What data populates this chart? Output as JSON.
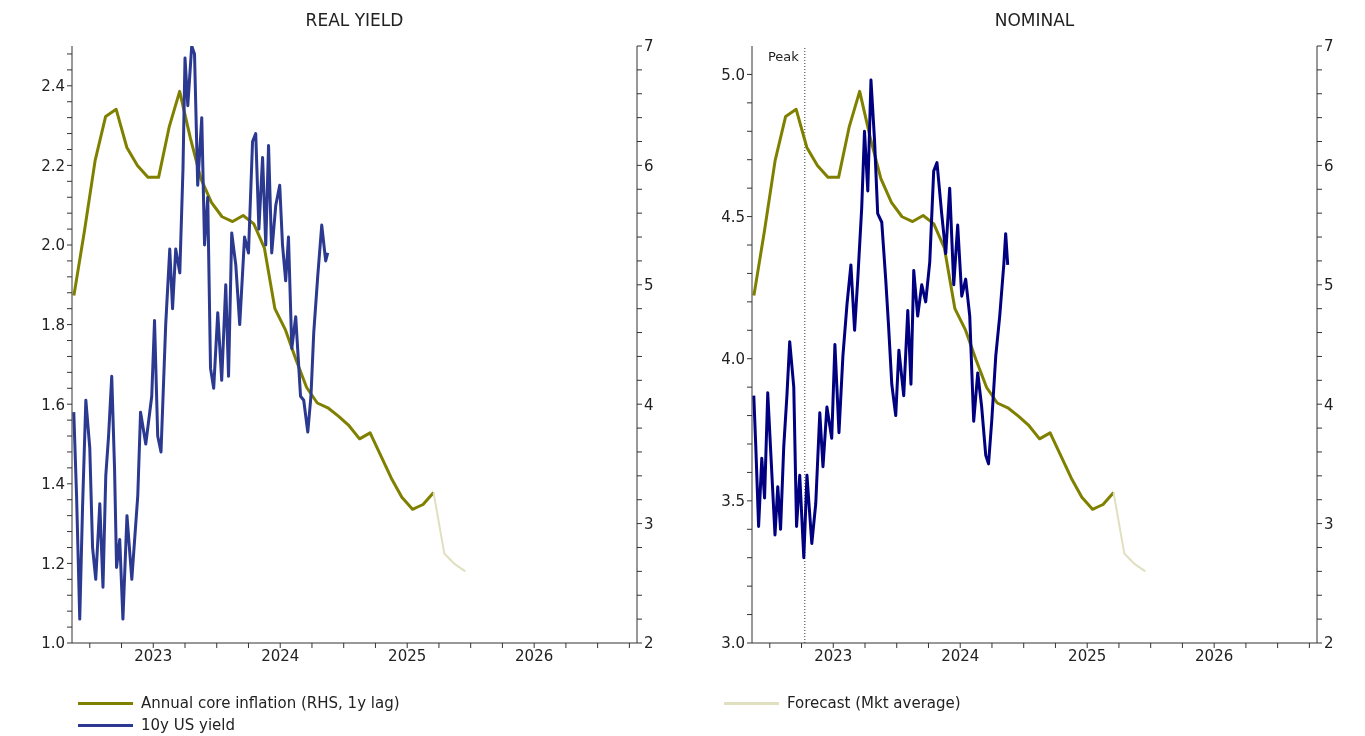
{
  "chart_data": [
    {
      "type": "line",
      "title": "REAL YIELD",
      "legend": "bottom",
      "xlim": [
        2022.86,
        2027.31
      ],
      "xticks": [
        {
          "value": 2023,
          "label": null
        },
        {
          "value": 2023.25,
          "label": null
        },
        {
          "value": 2023.5,
          "label": "2023"
        },
        {
          "value": 2023.75,
          "label": null
        },
        {
          "value": 2024,
          "label": null
        },
        {
          "value": 2024.25,
          "label": null
        },
        {
          "value": 2024.5,
          "label": "2024"
        },
        {
          "value": 2024.75,
          "label": null
        },
        {
          "value": 2025,
          "label": null
        },
        {
          "value": 2025.25,
          "label": null
        },
        {
          "value": 2025.5,
          "label": "2025"
        },
        {
          "value": 2025.75,
          "label": null
        },
        {
          "value": 2026,
          "label": null
        },
        {
          "value": 2026.25,
          "label": null
        },
        {
          "value": 2026.5,
          "label": "2026"
        },
        {
          "value": 2026.75,
          "label": null
        },
        {
          "value": 2027,
          "label": null
        },
        {
          "value": 2027.25,
          "label": null
        }
      ],
      "ylim": [
        1.0,
        2.5
      ],
      "yticks": [
        {
          "value": 1.0,
          "label": "1.0"
        },
        {
          "value": 1.04,
          "label": null
        },
        {
          "value": 1.08,
          "label": null
        },
        {
          "value": 1.12,
          "label": null
        },
        {
          "value": 1.16,
          "label": null
        },
        {
          "value": 1.2,
          "label": "1.2"
        },
        {
          "value": 1.24,
          "label": null
        },
        {
          "value": 1.28,
          "label": null
        },
        {
          "value": 1.32,
          "label": null
        },
        {
          "value": 1.36,
          "label": null
        },
        {
          "value": 1.4,
          "label": "1.4"
        },
        {
          "value": 1.44,
          "label": null
        },
        {
          "value": 1.48,
          "label": null
        },
        {
          "value": 1.52,
          "label": null
        },
        {
          "value": 1.56,
          "label": null
        },
        {
          "value": 1.6,
          "label": "1.6"
        },
        {
          "value": 1.64,
          "label": null
        },
        {
          "value": 1.68,
          "label": null
        },
        {
          "value": 1.72,
          "label": null
        },
        {
          "value": 1.76,
          "label": null
        },
        {
          "value": 1.8,
          "label": "1.8"
        },
        {
          "value": 1.84,
          "label": null
        },
        {
          "value": 1.88,
          "label": null
        },
        {
          "value": 1.92,
          "label": null
        },
        {
          "value": 1.96,
          "label": null
        },
        {
          "value": 2.0,
          "label": "2.0"
        },
        {
          "value": 2.04,
          "label": null
        },
        {
          "value": 2.08,
          "label": null
        },
        {
          "value": 2.12,
          "label": null
        },
        {
          "value": 2.16,
          "label": null
        },
        {
          "value": 2.2,
          "label": "2.2"
        },
        {
          "value": 2.24,
          "label": null
        },
        {
          "value": 2.28,
          "label": null
        },
        {
          "value": 2.32,
          "label": null
        },
        {
          "value": 2.36,
          "label": null
        },
        {
          "value": 2.4,
          "label": "2.4"
        },
        {
          "value": 2.44,
          "label": null
        },
        {
          "value": 2.48,
          "label": null
        }
      ],
      "y2lim": [
        2,
        7
      ],
      "y2ticks": [
        2,
        {
          "value": 2.2,
          "label": null
        },
        {
          "value": 2.4,
          "label": null
        },
        {
          "value": 2.6,
          "label": null
        },
        {
          "value": 2.8,
          "label": null
        },
        3,
        {
          "value": 3.2,
          "label": null
        },
        {
          "value": 3.4,
          "label": null
        },
        {
          "value": 3.6,
          "label": null
        },
        {
          "value": 3.8,
          "label": null
        },
        4,
        {
          "value": 4.2,
          "label": null
        },
        {
          "value": 4.4,
          "label": null
        },
        {
          "value": 4.6,
          "label": null
        },
        {
          "value": 4.8,
          "label": null
        },
        5,
        {
          "value": 5.2,
          "label": null
        },
        {
          "value": 5.4,
          "label": null
        },
        {
          "value": 5.6,
          "label": null
        },
        {
          "value": 5.8,
          "label": null
        },
        6,
        {
          "value": 6.2,
          "label": null
        },
        {
          "value": 6.4,
          "label": null
        },
        {
          "value": 6.6,
          "label": null
        },
        {
          "value": 6.8,
          "label": null
        },
        7
      ],
      "series": [
        {
          "name": "Annual core inflation (RHS, 1y lag)",
          "axis": "y2",
          "color": "#808000",
          "x": [
            2022.875,
            2022.958,
            2023.042,
            2023.125,
            2023.208,
            2023.292,
            2023.375,
            2023.458,
            2023.542,
            2023.625,
            2023.708,
            2023.792,
            2023.875,
            2023.958,
            2024.042,
            2024.125,
            2024.208,
            2024.292,
            2024.375,
            2024.458,
            2024.542,
            2024.625,
            2024.708,
            2024.792,
            2024.875,
            2024.958,
            2025.042,
            2025.125,
            2025.208,
            2025.292,
            2025.375,
            2025.458,
            2025.542,
            2025.625,
            2025.708
          ],
          "values": [
            4.91,
            5.45,
            6.04,
            6.41,
            6.47,
            6.15,
            6.0,
            5.9,
            5.9,
            6.32,
            6.62,
            6.23,
            5.89,
            5.69,
            5.57,
            5.53,
            5.58,
            5.51,
            5.31,
            4.8,
            4.62,
            4.37,
            4.14,
            4.01,
            3.97,
            3.9,
            3.82,
            3.71,
            3.76,
            3.57,
            3.38,
            3.22,
            3.12,
            3.16,
            3.26
          ]
        },
        {
          "name": "10y US yield",
          "axis": "y",
          "color": "#2b3990",
          "x": [
            2022.874,
            2022.896,
            2022.921,
            2022.943,
            2022.969,
            2023.0,
            2023.022,
            2023.047,
            2023.079,
            2023.104,
            2023.126,
            2023.148,
            2023.173,
            2023.195,
            2023.211,
            2023.236,
            2023.261,
            2023.293,
            2023.331,
            2023.378,
            2023.4,
            2023.441,
            2023.488,
            2023.51,
            2023.535,
            2023.561,
            2023.598,
            2023.63,
            2023.652,
            2023.677,
            2023.709,
            2023.734,
            2023.75,
            2023.772,
            2023.803,
            2023.825,
            2023.85,
            2023.882,
            2023.904,
            2023.929,
            2023.951,
            2023.976,
            2024.008,
            2024.039,
            2024.071,
            2024.093,
            2024.118,
            2024.15,
            2024.181,
            2024.219,
            2024.25,
            2024.282,
            2024.307,
            2024.332,
            2024.361,
            2024.386,
            2024.408,
            2024.433,
            2024.465,
            2024.496,
            2024.518,
            2024.543,
            2024.565,
            2024.591,
            2024.622,
            2024.66,
            2024.685,
            2024.717,
            2024.742,
            2024.764,
            2024.795,
            2024.827,
            2024.858,
            2024.874
          ],
          "values": [
            1.58,
            1.37,
            1.06,
            1.34,
            1.61,
            1.49,
            1.24,
            1.16,
            1.35,
            1.14,
            1.42,
            1.52,
            1.67,
            1.44,
            1.19,
            1.26,
            1.06,
            1.32,
            1.16,
            1.37,
            1.58,
            1.5,
            1.62,
            1.81,
            1.52,
            1.48,
            1.8,
            1.99,
            1.84,
            1.99,
            1.93,
            2.19,
            2.47,
            2.35,
            2.5,
            2.48,
            2.15,
            2.32,
            2.0,
            2.12,
            1.69,
            1.64,
            1.83,
            1.66,
            1.9,
            1.67,
            2.03,
            1.95,
            1.8,
            2.02,
            1.98,
            2.26,
            2.28,
            2.04,
            2.22,
            2.0,
            2.25,
            1.98,
            2.1,
            2.15,
            2.0,
            1.91,
            2.02,
            1.74,
            1.82,
            1.62,
            1.61,
            1.53,
            1.62,
            1.78,
            1.92,
            2.05,
            1.96,
            1.98
          ]
        },
        {
          "axis": "y2",
          "color": "#e0e0c0",
          "x": [
            2025.708,
            2025.792,
            2025.875,
            2025.958
          ],
          "values": [
            3.26,
            2.75,
            2.66,
            2.6
          ]
        }
      ]
    },
    {
      "type": "line",
      "title": "NOMINAL",
      "legend": "bottom",
      "xlim": [
        2022.86,
        2027.31
      ],
      "xticks": [
        {
          "value": 2023,
          "label": null
        },
        {
          "value": 2023.25,
          "label": null
        },
        {
          "value": 2023.5,
          "label": "2023"
        },
        {
          "value": 2023.75,
          "label": null
        },
        {
          "value": 2024,
          "label": null
        },
        {
          "value": 2024.25,
          "label": null
        },
        {
          "value": 2024.5,
          "label": "2024"
        },
        {
          "value": 2024.75,
          "label": null
        },
        {
          "value": 2025,
          "label": null
        },
        {
          "value": 2025.25,
          "label": null
        },
        {
          "value": 2025.5,
          "label": "2025"
        },
        {
          "value": 2025.75,
          "label": null
        },
        {
          "value": 2026,
          "label": null
        },
        {
          "value": 2026.25,
          "label": null
        },
        {
          "value": 2026.5,
          "label": "2026"
        },
        {
          "value": 2026.75,
          "label": null
        },
        {
          "value": 2027,
          "label": null
        },
        {
          "value": 2027.25,
          "label": null
        }
      ],
      "ylim": [
        3.0,
        5.1
      ],
      "yticks": [
        {
          "value": 3.0,
          "label": "3.0"
        },
        {
          "value": 3.1,
          "label": null
        },
        {
          "value": 3.2,
          "label": null
        },
        {
          "value": 3.3,
          "label": null
        },
        {
          "value": 3.4,
          "label": null
        },
        {
          "value": 3.5,
          "label": "3.5"
        },
        {
          "value": 3.6,
          "label": null
        },
        {
          "value": 3.7,
          "label": null
        },
        {
          "value": 3.8,
          "label": null
        },
        {
          "value": 3.9,
          "label": null
        },
        {
          "value": 4.0,
          "label": "4.0"
        },
        {
          "value": 4.1,
          "label": null
        },
        {
          "value": 4.2,
          "label": null
        },
        {
          "value": 4.3,
          "label": null
        },
        {
          "value": 4.4,
          "label": null
        },
        {
          "value": 4.5,
          "label": "4.5"
        },
        {
          "value": 4.6,
          "label": null
        },
        {
          "value": 4.7,
          "label": null
        },
        {
          "value": 4.8,
          "label": null
        },
        {
          "value": 4.9,
          "label": null
        },
        {
          "value": 5.0,
          "label": "5.0"
        }
      ],
      "y2lim": [
        2,
        7
      ],
      "y2ticks": [
        2,
        {
          "value": 2.2,
          "label": null
        },
        {
          "value": 2.4,
          "label": null
        },
        {
          "value": 2.6,
          "label": null
        },
        {
          "value": 2.8,
          "label": null
        },
        3,
        {
          "value": 3.2,
          "label": null
        },
        {
          "value": 3.4,
          "label": null
        },
        {
          "value": 3.6,
          "label": null
        },
        {
          "value": 3.8,
          "label": null
        },
        4,
        {
          "value": 4.2,
          "label": null
        },
        {
          "value": 4.4,
          "label": null
        },
        {
          "value": 4.6,
          "label": null
        },
        {
          "value": 4.8,
          "label": null
        },
        5,
        {
          "value": 5.2,
          "label": null
        },
        {
          "value": 5.4,
          "label": null
        },
        {
          "value": 5.6,
          "label": null
        },
        {
          "value": 5.8,
          "label": null
        },
        6,
        {
          "value": 6.2,
          "label": null
        },
        {
          "value": 6.4,
          "label": null
        },
        {
          "value": 6.6,
          "label": null
        },
        {
          "value": 6.8,
          "label": null
        },
        7
      ],
      "ref_lines": [
        {
          "axis": "x",
          "value": 2023.276,
          "label": "Peak",
          "line_style": "dotted",
          "color": "#333333"
        }
      ],
      "series": [
        {
          "axis": "y2",
          "color": "#808000",
          "x": [
            2022.875,
            2022.958,
            2023.042,
            2023.125,
            2023.208,
            2023.292,
            2023.375,
            2023.458,
            2023.542,
            2023.625,
            2023.708,
            2023.792,
            2023.875,
            2023.958,
            2024.042,
            2024.125,
            2024.208,
            2024.292,
            2024.375,
            2024.458,
            2024.542,
            2024.625,
            2024.708,
            2024.792,
            2024.875,
            2024.958,
            2025.042,
            2025.125,
            2025.208,
            2025.292,
            2025.375,
            2025.458,
            2025.542,
            2025.625,
            2025.708
          ],
          "values": [
            4.91,
            5.45,
            6.04,
            6.41,
            6.47,
            6.15,
            6.0,
            5.9,
            5.9,
            6.32,
            6.62,
            6.23,
            5.89,
            5.69,
            5.57,
            5.53,
            5.58,
            5.51,
            5.31,
            4.8,
            4.62,
            4.37,
            4.14,
            4.01,
            3.97,
            3.9,
            3.82,
            3.71,
            3.76,
            3.57,
            3.38,
            3.22,
            3.12,
            3.16,
            3.26
          ]
        },
        {
          "axis": "y",
          "color": "#000080",
          "x": [
            2022.874,
            2022.89,
            2022.912,
            2022.937,
            2022.959,
            2022.984,
            2023.009,
            2023.041,
            2023.063,
            2023.085,
            2023.11,
            2023.135,
            2023.157,
            2023.189,
            2023.211,
            2023.236,
            2023.268,
            2023.293,
            2023.331,
            2023.362,
            2023.394,
            2023.419,
            2023.45,
            2023.488,
            2023.513,
            2023.545,
            2023.576,
            2023.608,
            2023.639,
            2023.668,
            2023.693,
            2023.724,
            2023.746,
            2023.772,
            2023.797,
            2023.825,
            2023.85,
            2023.882,
            2023.913,
            2023.935,
            2023.961,
            2023.992,
            2024.017,
            2024.055,
            2024.087,
            2024.112,
            2024.134,
            2024.165,
            2024.197,
            2024.228,
            2024.26,
            2024.291,
            2024.317,
            2024.354,
            2024.386,
            2024.417,
            2024.449,
            2024.48,
            2024.512,
            2024.543,
            2024.575,
            2024.606,
            2024.638,
            2024.669,
            2024.701,
            2024.723,
            2024.748,
            2024.78,
            2024.811,
            2024.843,
            2024.858,
            2024.874
          ],
          "values": [
            3.87,
            3.69,
            3.41,
            3.65,
            3.51,
            3.88,
            3.66,
            3.38,
            3.55,
            3.4,
            3.69,
            3.87,
            4.06,
            3.9,
            3.41,
            3.59,
            3.3,
            3.59,
            3.35,
            3.49,
            3.81,
            3.62,
            3.83,
            3.72,
            4.05,
            3.74,
            4.01,
            4.19,
            4.33,
            4.1,
            4.28,
            4.53,
            4.8,
            4.59,
            4.98,
            4.77,
            4.51,
            4.48,
            4.28,
            4.12,
            3.91,
            3.8,
            4.03,
            3.87,
            4.17,
            3.91,
            4.31,
            4.15,
            4.26,
            4.2,
            4.34,
            4.66,
            4.69,
            4.51,
            4.37,
            4.6,
            4.26,
            4.47,
            4.22,
            4.28,
            4.15,
            3.78,
            3.95,
            3.83,
            3.66,
            3.63,
            3.78,
            4.01,
            4.15,
            4.33,
            4.44,
            4.33
          ]
        },
        {
          "name": "Forecast (Mkt average)",
          "axis": "y2",
          "color": "#e0e0c0",
          "x": [
            2025.708,
            2025.792,
            2025.875,
            2025.958
          ],
          "values": [
            3.26,
            2.75,
            2.66,
            2.6
          ]
        }
      ]
    }
  ]
}
